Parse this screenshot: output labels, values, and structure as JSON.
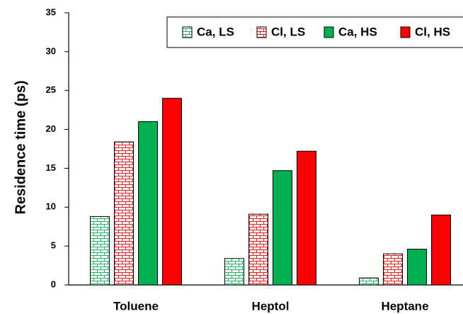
{
  "chart_data": {
    "type": "bar",
    "y_label": "Residence time (ps)",
    "categories": [
      "Toluene",
      "Heptol",
      "Heptane"
    ],
    "series": [
      {
        "name": "Ca, LS",
        "color": "#00b050",
        "hatch": true,
        "values": [
          8.8,
          3.4,
          0.9
        ]
      },
      {
        "name": "Cl, LS",
        "color": "#ff0000",
        "hatch": true,
        "values": [
          18.4,
          9.1,
          4.0
        ]
      },
      {
        "name": "Ca, HS",
        "color": "#00b050",
        "hatch": false,
        "values": [
          21.0,
          14.7,
          4.6
        ]
      },
      {
        "name": "Cl, HS",
        "color": "#ff0000",
        "hatch": false,
        "values": [
          24.0,
          17.2,
          9.0
        ]
      }
    ],
    "ylim": [
      0,
      35
    ],
    "yticks": [
      0,
      5,
      10,
      15,
      20,
      25,
      30,
      35
    ],
    "grid": false,
    "legend": "top-right"
  }
}
